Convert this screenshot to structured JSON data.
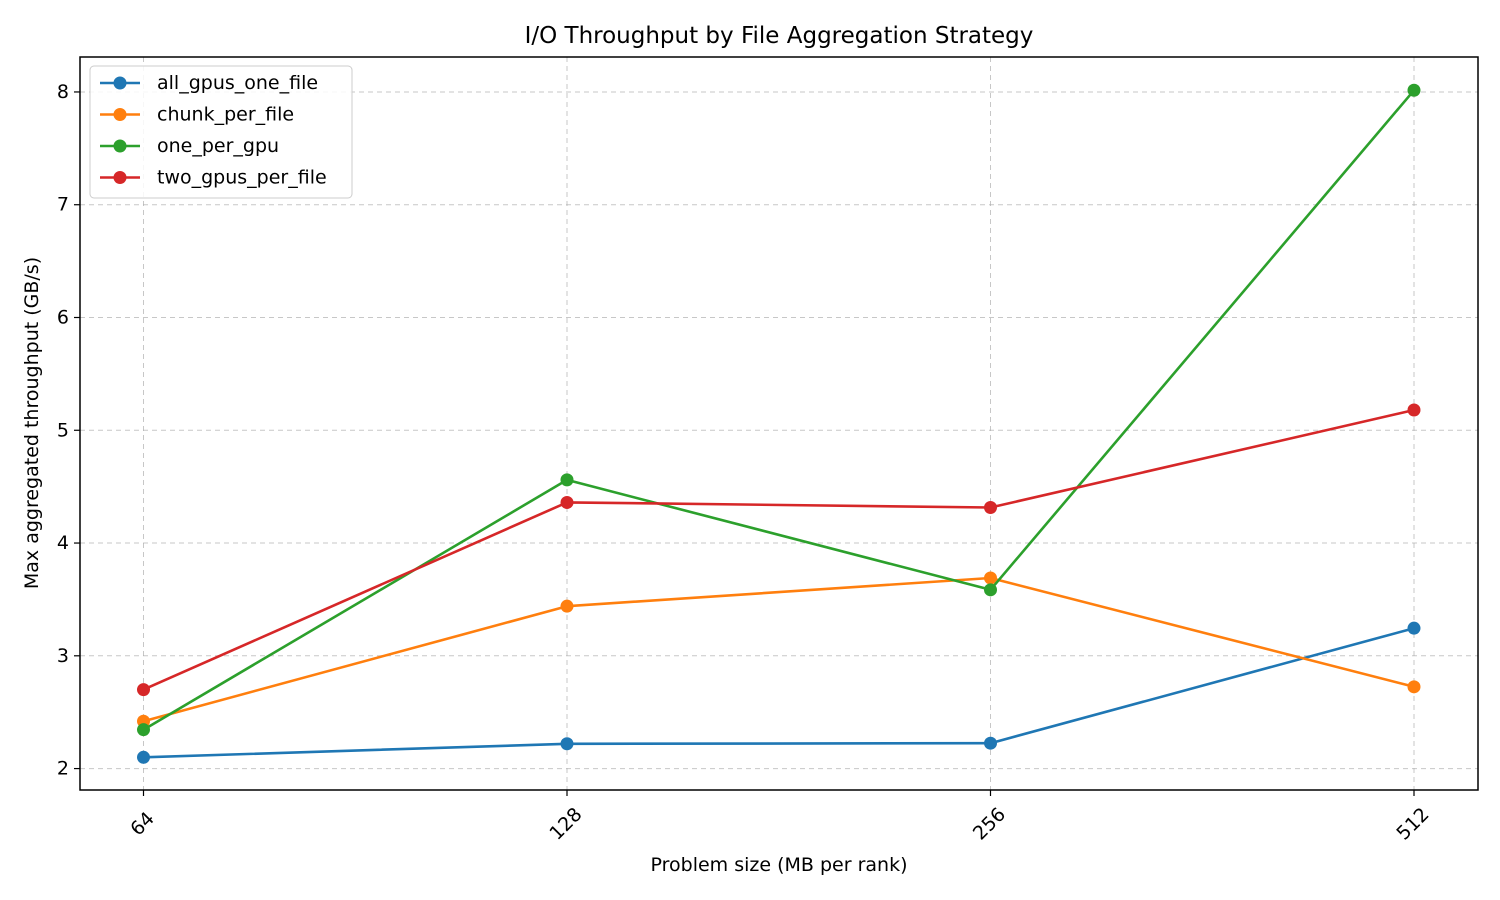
{
  "chart_data": {
    "type": "line",
    "title": "I/O Throughput by File Aggregation Strategy",
    "xlabel": "Problem size (MB per rank)",
    "ylabel": "Max aggregated throughput (GB/s)",
    "categories": [
      "64",
      "128",
      "256",
      "512"
    ],
    "yticks": [
      "2",
      "3",
      "4",
      "5",
      "6",
      "7",
      "8"
    ],
    "ylim": [
      1.81,
      8.31
    ],
    "grid": true,
    "legend_position": "top-left",
    "series": [
      {
        "name": "all_gpus_one_file",
        "color": "#1f77b4",
        "values": [
          2.1,
          2.22,
          2.225,
          3.245
        ]
      },
      {
        "name": "chunk_per_file",
        "color": "#ff7f0e",
        "values": [
          2.42,
          3.44,
          3.69,
          2.725
        ]
      },
      {
        "name": "one_per_gpu",
        "color": "#2ca02c",
        "values": [
          2.345,
          4.56,
          3.585,
          8.015
        ]
      },
      {
        "name": "two_gpus_per_file",
        "color": "#d62728",
        "values": [
          2.7,
          4.36,
          4.315,
          5.18
        ]
      }
    ]
  }
}
